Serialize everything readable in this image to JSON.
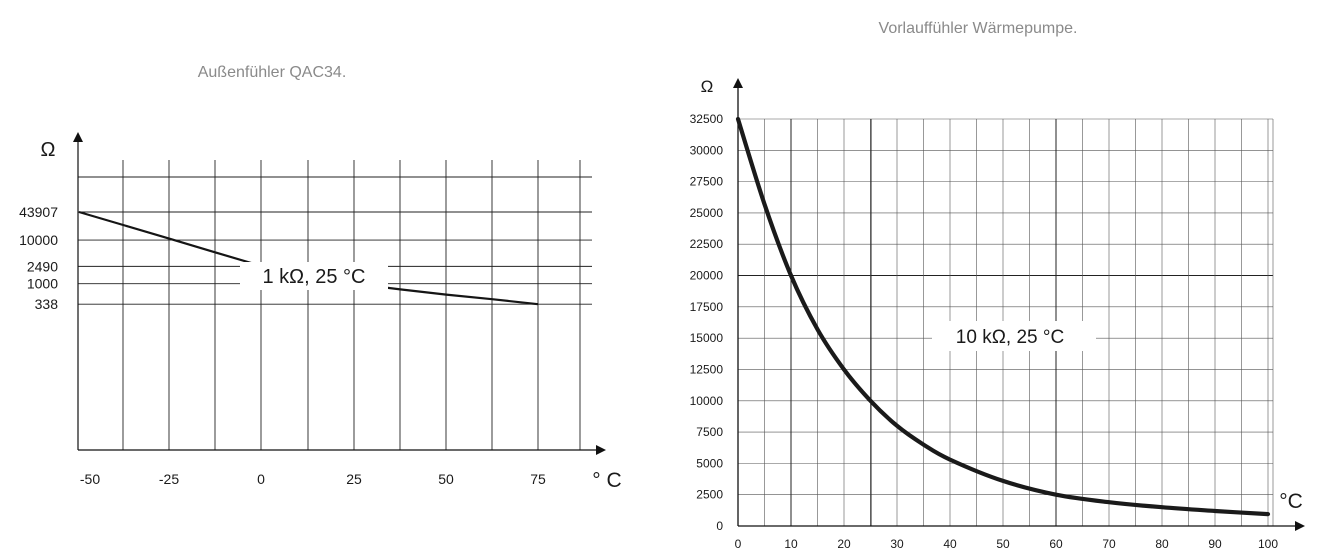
{
  "chart_data": [
    {
      "type": "line",
      "title": "Außenfühler QAC34.",
      "y_unit": "Ω",
      "x_unit": "° C",
      "annotation": "1 kΩ, 25 °C",
      "x": [
        -50,
        -37.5,
        -25,
        -12.5,
        0,
        12.5,
        25,
        37.5,
        50,
        62.5,
        75
      ],
      "y": [
        43907,
        21500,
        10500,
        5100,
        2490,
        1640,
        1000,
        740,
        560,
        440,
        338
      ],
      "x_ticks": [
        "-50",
        "-25",
        "0",
        "25",
        "50",
        "75"
      ],
      "y_ticks": [
        "43907",
        "10000",
        "2490",
        "1000",
        "338"
      ],
      "xlim": [
        -50,
        75
      ],
      "scale": "logarithmic",
      "grid": true
    },
    {
      "type": "line",
      "title": "Vorlauffühler Wärmepumpe.",
      "y_unit": "Ω",
      "x_unit": "°C",
      "annotation": "10 kΩ, 25 °C",
      "x": [
        0,
        5,
        10,
        15,
        20,
        25,
        30,
        35,
        40,
        50,
        60,
        70,
        80,
        90,
        100
      ],
      "y": [
        32500,
        25700,
        20000,
        15700,
        12500,
        10000,
        8000,
        6500,
        5300,
        3600,
        2500,
        1900,
        1500,
        1200,
        950
      ],
      "x_ticks": [
        "0",
        "10",
        "20",
        "30",
        "40",
        "50",
        "60",
        "70",
        "80",
        "90",
        "100"
      ],
      "y_ticks": [
        "0",
        "2500",
        "5000",
        "7500",
        "10000",
        "12500",
        "15000",
        "17500",
        "20000",
        "22500",
        "25000",
        "27500",
        "30000",
        "32500"
      ],
      "xlim": [
        0,
        100
      ],
      "ylim": [
        0,
        32500
      ],
      "grid": true
    }
  ]
}
